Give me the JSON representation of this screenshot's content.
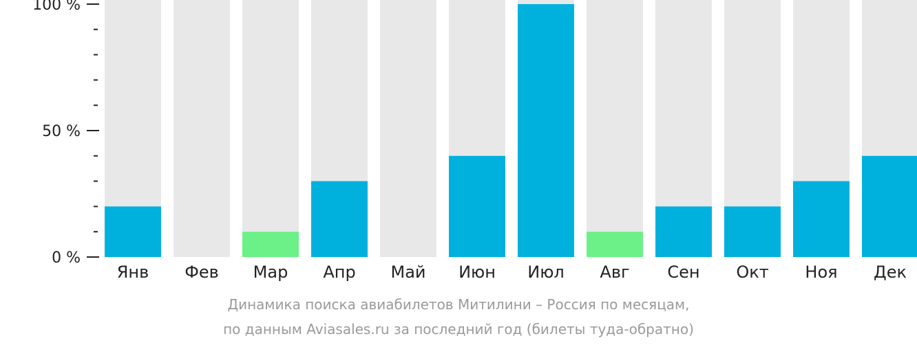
{
  "chart_data": {
    "type": "bar",
    "categories": [
      "Янв",
      "Фев",
      "Мар",
      "Апр",
      "Май",
      "Июн",
      "Июл",
      "Авг",
      "Сен",
      "Окт",
      "Ноя",
      "Дек"
    ],
    "values": [
      20,
      0,
      10,
      30,
      0,
      40,
      100,
      10,
      20,
      20,
      30,
      40
    ],
    "highlight": [
      false,
      false,
      true,
      false,
      false,
      false,
      false,
      true,
      false,
      false,
      false,
      false
    ],
    "ylim": [
      0,
      100
    ],
    "yticks": [
      {
        "value": 0,
        "label": "0 %"
      },
      {
        "value": 50,
        "label": "50 %"
      },
      {
        "value": 100,
        "label": "100 %"
      }
    ],
    "minor_tick_step": 10,
    "grid": false,
    "colors": {
      "bar": "#00b1dd",
      "highlight": "#6bf187",
      "track": "#e8e8e9",
      "axis": "#222222",
      "caption": "#9a9a9a"
    }
  },
  "caption": {
    "line1": "Динамика поиска авиабилетов Митилини – Россия по месяцам,",
    "line2": "по данным Aviasales.ru за последний год (билеты туда-обратно)"
  }
}
